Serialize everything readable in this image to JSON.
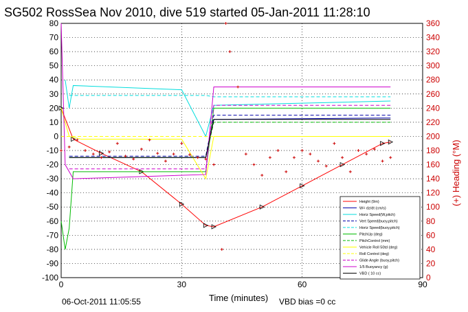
{
  "chart_data": {
    "type": "line",
    "title": "SG502 RossSea Nov 2010, dive 519 started 05-Jan-2011 11:28:10",
    "xlabel": "Time (minutes)",
    "ylabel_right": "(+) Heading (°M)",
    "xlim": [
      0,
      90
    ],
    "ylim": [
      -100,
      80
    ],
    "ylim_right": [
      0,
      360
    ],
    "x_ticks": [
      "0",
      "30",
      "60",
      "90"
    ],
    "y_ticks": [
      "80",
      "70",
      "60",
      "50",
      "40",
      "30",
      "20",
      "10",
      "0",
      "-10",
      "-20",
      "-30",
      "-40",
      "-50",
      "-60",
      "-70",
      "-80",
      "-90",
      "-100"
    ],
    "y_right_ticks": [
      "360",
      "340",
      "320",
      "300",
      "280",
      "260",
      "240",
      "220",
      "200",
      "180",
      "160",
      "140",
      "120",
      "100",
      "80",
      "60",
      "40",
      "20",
      "0"
    ],
    "grid": true,
    "legend_position": "bottom-right",
    "footer_left": "06-Oct-2011 11:05:55",
    "footer_right": "VBD bias =0 cc",
    "colors": {
      "height": "#ff0000",
      "w": "#0000aa",
      "horz_speed": "#00dddd",
      "pitch": "#00bb00",
      "roll": "#ffff00",
      "buoyancy": "#cc00cc",
      "vbd": "#000000",
      "heading": "#cc0000"
    },
    "series": [
      {
        "name": "Height (9m)",
        "color": "#ff0000",
        "style": "solid-tri",
        "x": [
          0,
          3,
          10,
          20,
          30,
          36,
          38,
          50,
          60,
          70,
          80,
          82
        ],
        "y": [
          20,
          -2,
          -12,
          -25,
          -48,
          -63,
          -64,
          -50,
          -35,
          -20,
          -5,
          -4
        ]
      },
      {
        "name": "W= dz/dt (cm/s)",
        "color": "#0000aa",
        "style": "solid",
        "x": [
          2,
          5,
          30,
          36,
          38,
          80,
          82
        ],
        "y": [
          -15,
          -15,
          -15,
          -15,
          12,
          13,
          13
        ]
      },
      {
        "name": "Horiz Speed(W,pitch)",
        "color": "#00dddd",
        "style": "solid",
        "x": [
          1,
          2,
          3,
          30,
          36,
          38,
          82
        ],
        "y": [
          40,
          20,
          36,
          33,
          0,
          22,
          25
        ]
      },
      {
        "name": "Vert Speed(buoy,pitch)",
        "color": "#0000aa",
        "style": "dashed",
        "x": [
          2,
          36,
          38,
          82
        ],
        "y": [
          -14,
          -14,
          15,
          15
        ]
      },
      {
        "name": "Horiz Speed(buoy,pitch)",
        "color": "#00dddd",
        "style": "dashed",
        "x": [
          2,
          36,
          38,
          82
        ],
        "y": [
          29,
          29,
          28,
          28
        ]
      },
      {
        "name": "PitchUp (deg)",
        "color": "#00bb00",
        "style": "solid",
        "x": [
          0,
          1,
          2,
          3,
          30,
          36,
          38,
          82
        ],
        "y": [
          -60,
          -80,
          -65,
          -25,
          -25,
          -25,
          20,
          20
        ]
      },
      {
        "name": "PitchControl (mm)",
        "color": "#00bb00",
        "style": "dashed",
        "x": [
          2,
          36,
          38,
          82
        ],
        "y": [
          -15,
          -15,
          10,
          10
        ]
      },
      {
        "name": "Vehicle Roll 50td (deg)",
        "color": "#ffff00",
        "style": "solid",
        "x": [
          0,
          2,
          5,
          30,
          36,
          38,
          82
        ],
        "y": [
          20,
          0,
          -2,
          -2,
          -30,
          0,
          0
        ]
      },
      {
        "name": "Roll Control (deg)",
        "color": "#ffff00",
        "style": "dashed",
        "x": [
          0,
          82
        ],
        "y": [
          0,
          0
        ]
      },
      {
        "name": "Glide Angle (buoy,pitch)",
        "color": "#cc00cc",
        "style": "dashed",
        "x": [
          2,
          36,
          38,
          82
        ],
        "y": [
          -23,
          -23,
          22,
          22
        ]
      },
      {
        "name": "1/5 Buoyancy (g)",
        "color": "#cc00cc",
        "style": "solid",
        "x": [
          0,
          1,
          3,
          36,
          38,
          82
        ],
        "y": [
          80,
          -20,
          -30,
          -27,
          35,
          35
        ]
      },
      {
        "name": "VBD ( 10 cc)",
        "color": "#000000",
        "style": "solid",
        "x": [
          2,
          36,
          38,
          82
        ],
        "y": [
          -15,
          -15,
          12,
          12
        ]
      }
    ],
    "heading_series": {
      "axis": "right",
      "color": "#cc0000",
      "x": [
        0,
        2,
        4,
        6,
        8,
        10,
        12,
        14,
        16,
        18,
        20,
        22,
        24,
        26,
        28,
        30,
        32,
        34,
        36,
        38,
        40,
        41,
        42,
        44,
        46,
        48,
        50,
        52,
        54,
        56,
        58,
        60,
        62,
        64,
        66,
        68,
        70,
        72,
        74,
        76,
        78,
        80,
        82
      ],
      "y": [
        180,
        185,
        195,
        180,
        175,
        170,
        178,
        190,
        172,
        168,
        182,
        195,
        176,
        165,
        175,
        190,
        174,
        170,
        168,
        160,
        40,
        360,
        320,
        270,
        175,
        160,
        145,
        170,
        180,
        150,
        170,
        180,
        175,
        165,
        158,
        190,
        170,
        150,
        180,
        175,
        182,
        165,
        170
      ]
    }
  }
}
